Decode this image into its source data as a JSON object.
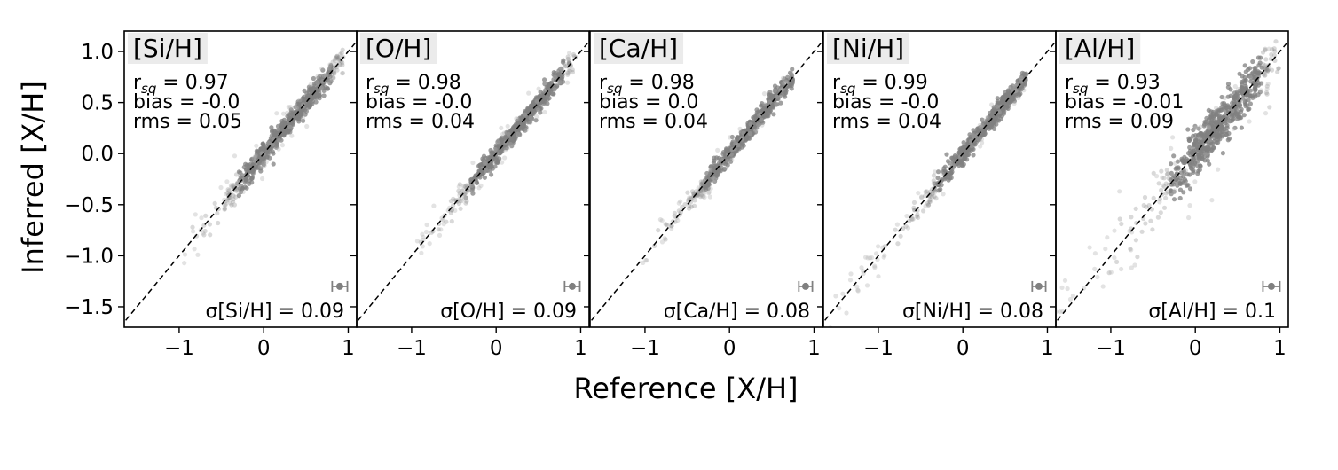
{
  "figure": {
    "xlabel": "Reference [X/H]",
    "ylabel": "Inferred [X/H]"
  },
  "chart_data": [
    {
      "type": "scatter",
      "title": "[Si/H]",
      "stats": {
        "rsq_label": "r",
        "rsq_sub": "sq",
        "rsq_value": "= 0.97",
        "bias": "bias = -0.0",
        "rms": "rms = 0.05"
      },
      "sigma_label": "σ[Si/H] = 0.09",
      "sigma": 0.09,
      "xlim": [
        -1.65,
        1.1
      ],
      "ylim": [
        -1.7,
        1.2
      ],
      "xticks": [
        "−1",
        "0",
        "1"
      ],
      "xtick_values": [
        -1,
        0,
        1
      ],
      "yticks": [
        "1.0",
        "0.5",
        "0.0",
        "−0.5",
        "−1.0",
        "−1.5"
      ],
      "ytick_values": [
        1.0,
        0.5,
        0.0,
        -0.5,
        -1.0,
        -1.5
      ],
      "data_range": [
        -0.95,
        0.95
      ],
      "spread": 0.05,
      "errorbar": {
        "x": 0.9,
        "y": -1.3,
        "xerr": 0.09
      },
      "point_color": "#808080"
    },
    {
      "type": "scatter",
      "title": "[O/H]",
      "stats": {
        "rsq_label": "r",
        "rsq_sub": "sq",
        "rsq_value": "= 0.98",
        "bias": "bias = -0.0",
        "rms": "rms = 0.04"
      },
      "sigma_label": "σ[O/H] = 0.09",
      "sigma": 0.09,
      "xlim": [
        -1.65,
        1.1
      ],
      "ylim": [
        -1.7,
        1.2
      ],
      "xticks": [
        "−1",
        "0",
        "1"
      ],
      "xtick_values": [
        -1,
        0,
        1
      ],
      "data_range": [
        -0.95,
        0.95
      ],
      "spread": 0.04,
      "errorbar": {
        "x": 0.9,
        "y": -1.3,
        "xerr": 0.09
      },
      "point_color": "#808080"
    },
    {
      "type": "scatter",
      "title": "[Ca/H]",
      "stats": {
        "rsq_label": "r",
        "rsq_sub": "sq",
        "rsq_value": "= 0.98",
        "bias": "bias = 0.0",
        "rms": "rms = 0.04"
      },
      "sigma_label": "σ[Ca/H] = 0.08",
      "sigma": 0.08,
      "xlim": [
        -1.65,
        1.1
      ],
      "ylim": [
        -1.7,
        1.2
      ],
      "xticks": [
        "−1",
        "0",
        "1"
      ],
      "xtick_values": [
        -1,
        0,
        1
      ],
      "data_range": [
        -1.05,
        0.75
      ],
      "spread": 0.04,
      "errorbar": {
        "x": 0.9,
        "y": -1.3,
        "xerr": 0.08
      },
      "point_color": "#808080"
    },
    {
      "type": "scatter",
      "title": "[Ni/H]",
      "stats": {
        "rsq_label": "r",
        "rsq_sub": "sq",
        "rsq_value": "= 0.99",
        "bias": "bias = -0.0",
        "rms": "rms = 0.04"
      },
      "sigma_label": "σ[Ni/H] = 0.08",
      "sigma": 0.08,
      "xlim": [
        -1.65,
        1.1
      ],
      "ylim": [
        -1.7,
        1.2
      ],
      "xticks": [
        "−1",
        "0",
        "1"
      ],
      "xtick_values": [
        -1,
        0,
        1
      ],
      "data_range": [
        -1.6,
        0.75
      ],
      "spread": 0.04,
      "errorbar": {
        "x": 0.9,
        "y": -1.3,
        "xerr": 0.08
      },
      "point_color": "#808080"
    },
    {
      "type": "scatter",
      "title": "[Al/H]",
      "stats": {
        "rsq_label": "r",
        "rsq_sub": "sq",
        "rsq_value": "= 0.93",
        "bias": "bias = -0.01",
        "rms": "rms = 0.09"
      },
      "sigma_label": "σ[Al/H] = 0.1",
      "sigma": 0.1,
      "xlim": [
        -1.65,
        1.1
      ],
      "ylim": [
        -1.7,
        1.2
      ],
      "xticks": [
        "−1",
        "0",
        "1"
      ],
      "xtick_values": [
        -1,
        0,
        1
      ],
      "data_range": [
        -1.65,
        1.0
      ],
      "spread": 0.09,
      "errorbar": {
        "x": 0.9,
        "y": -1.3,
        "xerr": 0.1
      },
      "point_color": "#808080"
    }
  ]
}
